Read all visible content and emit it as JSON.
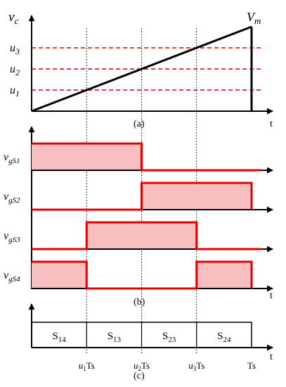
{
  "panel_a": {
    "caption": "(a)",
    "y_var": "v",
    "y_sub": "c",
    "vm_var": "V",
    "vm_sub": "m",
    "t_label": "t",
    "levels": [
      {
        "var": "u",
        "sub": "3",
        "value": 0.75
      },
      {
        "var": "u",
        "sub": "2",
        "value": 0.5
      },
      {
        "var": "u",
        "sub": "1",
        "value": 0.25
      }
    ],
    "colors": {
      "ramp": "#000000",
      "threshold": "#e00000"
    }
  },
  "panel_b": {
    "caption": "(b)",
    "t_label": "t",
    "signals": [
      {
        "var": "v",
        "sub": "gS1",
        "pulses": [
          [
            0,
            0.5
          ]
        ]
      },
      {
        "var": "v",
        "sub": "gS2",
        "pulses": [
          [
            0.5,
            1
          ]
        ]
      },
      {
        "var": "v",
        "sub": "gS3",
        "pulses": [
          [
            0.25,
            0.75
          ]
        ]
      },
      {
        "var": "v",
        "sub": "gS4",
        "pulses": [
          [
            0,
            0.25
          ],
          [
            0.75,
            1
          ]
        ]
      }
    ],
    "colors": {
      "pulse_line": "#e00000",
      "pulse_fill": "#f7bfbf",
      "axis": "#000000"
    }
  },
  "panel_c": {
    "caption": "(c)",
    "t_label": "t",
    "states": [
      {
        "main": "S",
        "sub": "14"
      },
      {
        "main": "S",
        "sub": "13"
      },
      {
        "main": "S",
        "sub": "23"
      },
      {
        "main": "S",
        "sub": "24"
      }
    ],
    "ticks": [
      {
        "var": "u",
        "sub": "1",
        "suffix": "Ts"
      },
      {
        "var": "u",
        "sub": "2",
        "suffix": "Ts"
      },
      {
        "var": "u",
        "sub": "3",
        "suffix": "Ts"
      },
      {
        "var": "",
        "sub": "",
        "suffix": "Ts"
      }
    ]
  }
}
